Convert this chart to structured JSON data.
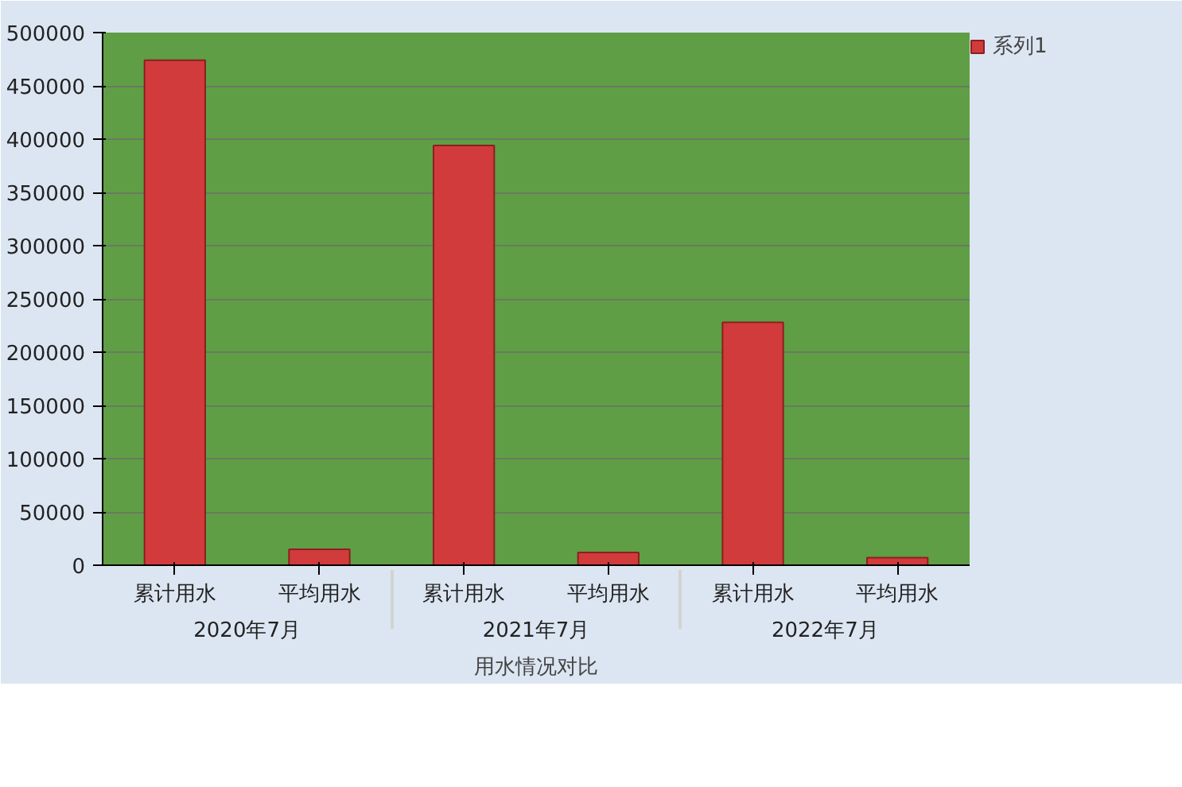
{
  "chart_data": {
    "type": "bar",
    "xlabel": "用水情况对比",
    "categories": [
      "累计用水",
      "平均用水",
      "累计用水",
      "平均用水",
      "累计用水",
      "平均用水"
    ],
    "annotations": [
      "2020年7月",
      "2021年7月",
      "2022年7月"
    ],
    "series": [
      {
        "name": "系列1",
        "color": "#d23b3b",
        "values": [
          474000,
          15000,
          394000,
          12000,
          228000,
          7000
        ]
      }
    ],
    "ylim": [
      0,
      500000
    ],
    "yticks": [
      0,
      50000,
      100000,
      150000,
      200000,
      250000,
      300000,
      350000,
      400000,
      450000,
      500000
    ],
    "grid": "y",
    "legend": "right"
  }
}
